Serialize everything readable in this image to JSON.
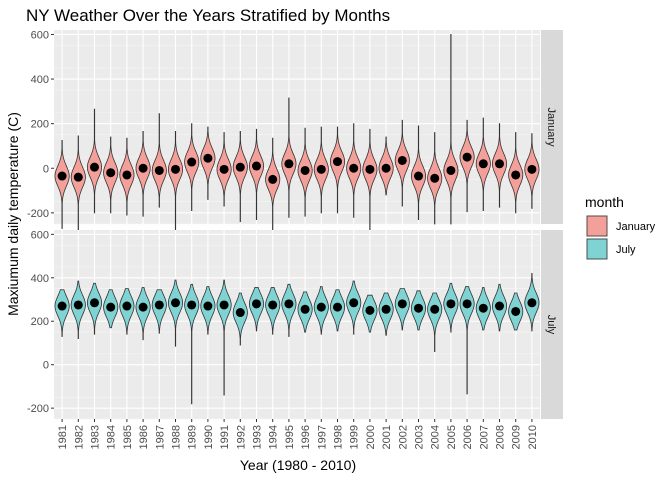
{
  "chart_data": {
    "type": "violin",
    "title": "NY Weather Over the Years Stratified by Months",
    "xlabel": "Year (1980 - 2010)",
    "ylabel": "Maxiumum daily temperature (C)",
    "ylim": [
      -250,
      620
    ],
    "yticks": [
      -200,
      0,
      200,
      400,
      600
    ],
    "yticklabels": [
      "-200",
      "0",
      "200",
      "400",
      "600"
    ],
    "categories": [
      "1981",
      "1982",
      "1983",
      "1984",
      "1985",
      "1986",
      "1987",
      "1988",
      "1989",
      "1990",
      "1991",
      "1992",
      "1993",
      "1994",
      "1995",
      "1996",
      "1997",
      "1998",
      "1999",
      "2000",
      "2001",
      "2002",
      "2003",
      "2004",
      "2005",
      "2006",
      "2007",
      "2008",
      "2009",
      "2010"
    ],
    "legend": {
      "title": "month",
      "position": "right",
      "entries": [
        {
          "label": "January",
          "color": "#F4A09A"
        },
        {
          "label": "July",
          "color": "#7FD3D3"
        }
      ]
    },
    "facets": [
      {
        "label": "January",
        "color": "#F4A09A",
        "medians": [
          -35,
          -40,
          5,
          -20,
          -30,
          0,
          -10,
          -5,
          28,
          45,
          -5,
          5,
          10,
          -50,
          20,
          -10,
          -5,
          30,
          0,
          -5,
          0,
          35,
          -35,
          -45,
          -10,
          50,
          20,
          20,
          -30,
          -5
        ],
        "min": [
          -270,
          -305,
          -200,
          -200,
          -210,
          -215,
          -175,
          -275,
          -190,
          -140,
          -170,
          -240,
          -230,
          -305,
          -220,
          -215,
          -200,
          -200,
          -220,
          -300,
          -120,
          -170,
          -230,
          -250,
          -250,
          -195,
          -190,
          -175,
          -200,
          -180
        ],
        "max": [
          125,
          145,
          265,
          140,
          135,
          165,
          245,
          165,
          200,
          185,
          160,
          165,
          175,
          135,
          315,
          180,
          185,
          185,
          200,
          175,
          140,
          215,
          190,
          160,
          600,
          215,
          225,
          200,
          160,
          155
        ]
      },
      {
        "label": "July",
        "color": "#7FD3D3",
        "medians": [
          270,
          275,
          285,
          265,
          270,
          265,
          275,
          285,
          275,
          270,
          275,
          240,
          280,
          275,
          280,
          255,
          265,
          265,
          285,
          250,
          255,
          280,
          260,
          255,
          280,
          280,
          260,
          270,
          245,
          285
        ],
        "min": [
          130,
          120,
          140,
          170,
          140,
          115,
          145,
          85,
          -180,
          140,
          -140,
          90,
          155,
          140,
          130,
          150,
          140,
          155,
          140,
          150,
          135,
          160,
          160,
          60,
          150,
          -135,
          160,
          155,
          160,
          155
        ],
        "max": [
          345,
          385,
          375,
          345,
          350,
          355,
          345,
          390,
          370,
          360,
          390,
          330,
          355,
          355,
          370,
          335,
          360,
          345,
          385,
          320,
          330,
          350,
          340,
          330,
          375,
          360,
          355,
          370,
          330,
          420
        ]
      }
    ]
  }
}
